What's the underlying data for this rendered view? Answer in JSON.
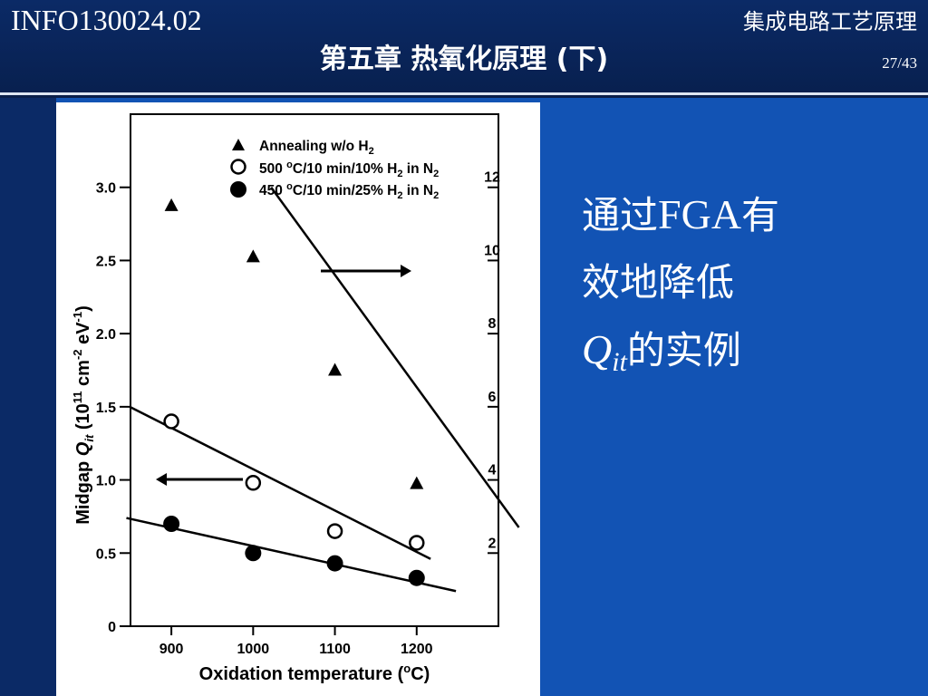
{
  "header": {
    "course_code": "INFO130024.02",
    "course_name": "集成电路工艺原理",
    "title": "第五章  热氧化原理 (下)",
    "page": "27/43"
  },
  "side_text": {
    "line1_pre": "通过",
    "line1_latin": "FGA",
    "line1_post": "有",
    "line2": "效地降低",
    "line3_q": "Q",
    "line3_sub": "it",
    "line3_post": "的实例"
  },
  "chart_data": {
    "type": "scatter",
    "xlabel": "Oxidation temperature (oC)",
    "ylabel_left": "Midgap Qit (10^11 cm^-2 eV^-1)",
    "x_ticks": [
      900,
      1000,
      1100,
      1200
    ],
    "xlim": [
      850,
      1300
    ],
    "y_ticks_left": [
      "0",
      "0.5",
      "1.0",
      "1.5",
      "2.0",
      "2.5",
      "3.0"
    ],
    "ylim_left": [
      0,
      3.5
    ],
    "y_ticks_right": [
      "2",
      "4",
      "6",
      "8",
      "10",
      "12"
    ],
    "ylim_right": [
      0,
      14
    ],
    "legend": [
      {
        "marker": "triangle",
        "text": "Annealing w/o H2"
      },
      {
        "marker": "open-circle",
        "text": "500 oC/10 min/10% H2 in N2"
      },
      {
        "marker": "filled-circle",
        "text": "450 oC/10 min/25% H2 in N2"
      }
    ],
    "series": [
      {
        "name": "Annealing w/o H2",
        "axis": "right",
        "marker": "triangle",
        "x": [
          900,
          1000,
          1100,
          1200
        ],
        "y": [
          11.5,
          10.1,
          7.0,
          3.9
        ],
        "fit": {
          "x": [
            1022,
            1325
          ],
          "y": [
            12.0,
            2.7
          ]
        }
      },
      {
        "name": "500 oC/10 min/10% H2 in N2",
        "axis": "left",
        "marker": "open-circle",
        "x": [
          900,
          1000,
          1100,
          1200
        ],
        "y": [
          1.4,
          0.98,
          0.65,
          0.57
        ],
        "fit": {
          "x": [
            849,
            1217
          ],
          "y": [
            1.5,
            0.46
          ]
        }
      },
      {
        "name": "450 oC/10 min/25% H2 in N2",
        "axis": "left",
        "marker": "filled-circle",
        "x": [
          900,
          1000,
          1100,
          1200
        ],
        "y": [
          0.7,
          0.5,
          0.43,
          0.33
        ],
        "fit": {
          "x": [
            845,
            1248
          ],
          "y": [
            0.74,
            0.24
          ]
        }
      }
    ],
    "arrows": [
      {
        "direction": "right",
        "meaning": "triangle series uses right axis"
      },
      {
        "direction": "left",
        "meaning": "circle series use left axis"
      }
    ]
  }
}
